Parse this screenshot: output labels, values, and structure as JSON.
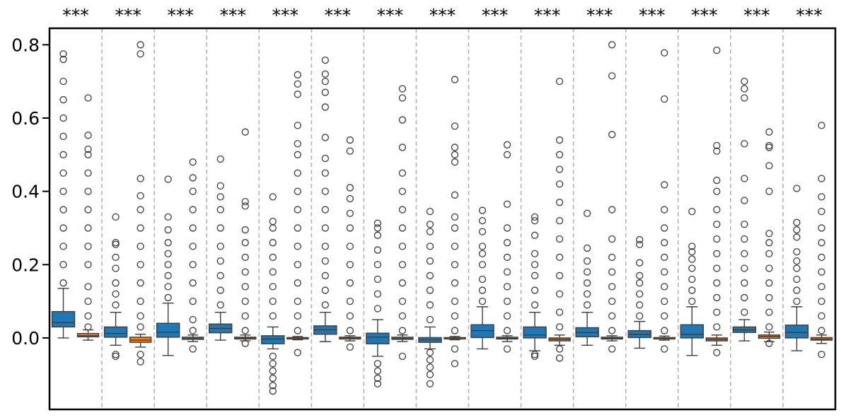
{
  "chart_data": {
    "type": "box",
    "title": "",
    "xlabel": "",
    "ylabel": "",
    "ylim": [
      -0.195,
      0.845
    ],
    "y_ticks": [
      {
        "value": 0.0,
        "label": "0.0"
      },
      {
        "value": 0.2,
        "label": "0.2"
      },
      {
        "value": 0.4,
        "label": "0.4"
      },
      {
        "value": 0.6,
        "label": "0.6"
      },
      {
        "value": 0.8,
        "label": "0.8"
      }
    ],
    "grid": false,
    "legend": "none",
    "group_separators": "dashed",
    "significance_marker": "***",
    "series_colors": [
      "#1f77b4",
      "#ff7f0e"
    ],
    "groups": [
      {
        "significance": "***",
        "boxes": [
          {
            "q1": 0.03,
            "median": 0.042,
            "q3": 0.072,
            "whisker_low": 0.0,
            "whisker_high": 0.135,
            "outliers": [
              0.15,
              0.2,
              0.25,
              0.3,
              0.35,
              0.4,
              0.45,
              0.5,
              0.55,
              0.6,
              0.65,
              0.7,
              0.76,
              0.775
            ]
          },
          {
            "q1": 0.003,
            "median": 0.006,
            "q3": 0.012,
            "whisker_low": -0.006,
            "whisker_high": 0.022,
            "outliers": [
              0.03,
              0.06,
              0.1,
              0.14,
              0.2,
              0.25,
              0.3,
              0.35,
              0.4,
              0.45,
              0.5,
              0.515,
              0.553,
              0.655
            ]
          }
        ]
      },
      {
        "significance": "***",
        "boxes": [
          {
            "q1": 0.002,
            "median": 0.012,
            "q3": 0.03,
            "whisker_low": -0.02,
            "whisker_high": 0.07,
            "outliers": [
              -0.05,
              -0.045,
              0.09,
              0.12,
              0.15,
              0.19,
              0.22,
              0.255,
              0.26,
              0.33
            ]
          },
          {
            "q1": -0.012,
            "median": -0.006,
            "q3": 0.002,
            "whisker_low": -0.025,
            "whisker_high": 0.01,
            "outliers": [
              -0.065,
              -0.045,
              0.03,
              0.06,
              0.1,
              0.15,
              0.2,
              0.25,
              0.3,
              0.35,
              0.388,
              0.435,
              0.775,
              0.8
            ]
          }
        ]
      },
      {
        "significance": "***",
        "boxes": [
          {
            "q1": 0.002,
            "median": 0.016,
            "q3": 0.04,
            "whisker_low": -0.048,
            "whisker_high": 0.095,
            "outliers": [
              0.11,
              0.14,
              0.17,
              0.2,
              0.23,
              0.26,
              0.295,
              0.33,
              0.433
            ]
          },
          {
            "q1": -0.004,
            "median": -0.001,
            "q3": 0.002,
            "whisker_low": -0.01,
            "whisker_high": 0.008,
            "outliers": [
              -0.03,
              0.02,
              0.05,
              0.1,
              0.15,
              0.2,
              0.25,
              0.3,
              0.35,
              0.4,
              0.437,
              0.48
            ]
          }
        ]
      },
      {
        "significance": "***",
        "boxes": [
          {
            "q1": 0.014,
            "median": 0.026,
            "q3": 0.038,
            "whisker_low": -0.006,
            "whisker_high": 0.07,
            "outliers": [
              0.09,
              0.13,
              0.17,
              0.21,
              0.25,
              0.3,
              0.35,
              0.385,
              0.415,
              0.488
            ]
          },
          {
            "q1": -0.003,
            "median": 0.0,
            "q3": 0.002,
            "whisker_low": -0.008,
            "whisker_high": 0.008,
            "outliers": [
              -0.015,
              0.02,
              0.06,
              0.1,
              0.14,
              0.18,
              0.22,
              0.26,
              0.295,
              0.36,
              0.372,
              0.562
            ]
          }
        ]
      },
      {
        "significance": "***",
        "boxes": [
          {
            "q1": -0.016,
            "median": -0.003,
            "q3": 0.006,
            "whisker_low": -0.03,
            "whisker_high": 0.03,
            "outliers": [
              -0.145,
              -0.13,
              -0.11,
              -0.09,
              -0.07,
              -0.05,
              0.06,
              0.1,
              0.14,
              0.18,
              0.22,
              0.26,
              0.3,
              0.318,
              0.385
            ]
          },
          {
            "q1": -0.002,
            "median": 0.0,
            "q3": 0.001,
            "whisker_low": -0.005,
            "whisker_high": 0.004,
            "outliers": [
              -0.04,
              0.02,
              0.06,
              0.1,
              0.15,
              0.2,
              0.25,
              0.3,
              0.35,
              0.4,
              0.45,
              0.5,
              0.53,
              0.58,
              0.665,
              0.693,
              0.718
            ]
          }
        ]
      },
      {
        "significance": "***",
        "boxes": [
          {
            "q1": 0.01,
            "median": 0.022,
            "q3": 0.033,
            "whisker_low": -0.01,
            "whisker_high": 0.07,
            "outliers": [
              0.09,
              0.13,
              0.17,
              0.21,
              0.25,
              0.3,
              0.35,
              0.4,
              0.45,
              0.49,
              0.547,
              0.63,
              0.67,
              0.7,
              0.72,
              0.758
            ]
          },
          {
            "q1": -0.003,
            "median": 0.0,
            "q3": 0.002,
            "whisker_low": -0.008,
            "whisker_high": 0.006,
            "outliers": [
              -0.025,
              0.02,
              0.06,
              0.1,
              0.15,
              0.2,
              0.25,
              0.3,
              0.34,
              0.38,
              0.41,
              0.51,
              0.54
            ]
          }
        ]
      },
      {
        "significance": "***",
        "boxes": [
          {
            "q1": -0.016,
            "median": 0.002,
            "q3": 0.013,
            "whisker_low": -0.05,
            "whisker_high": 0.05,
            "outliers": [
              -0.125,
              -0.11,
              -0.09,
              -0.07,
              0.08,
              0.12,
              0.16,
              0.2,
              0.24,
              0.28,
              0.3,
              0.313
            ]
          },
          {
            "q1": -0.004,
            "median": -0.001,
            "q3": 0.002,
            "whisker_low": -0.01,
            "whisker_high": 0.008,
            "outliers": [
              -0.05,
              0.02,
              0.06,
              0.1,
              0.15,
              0.2,
              0.25,
              0.3,
              0.35,
              0.4,
              0.45,
              0.52,
              0.595,
              0.655,
              0.68
            ]
          }
        ]
      },
      {
        "significance": "***",
        "boxes": [
          {
            "q1": -0.012,
            "median": -0.005,
            "q3": 0.001,
            "whisker_low": -0.03,
            "whisker_high": 0.03,
            "outliers": [
              -0.125,
              -0.1,
              -0.08,
              -0.06,
              -0.04,
              0.05,
              0.09,
              0.13,
              0.17,
              0.21,
              0.25,
              0.29,
              0.31,
              0.345
            ]
          },
          {
            "q1": -0.002,
            "median": 0.0,
            "q3": 0.001,
            "whisker_low": -0.005,
            "whisker_high": 0.004,
            "outliers": [
              -0.07,
              -0.03,
              0.02,
              0.06,
              0.1,
              0.15,
              0.2,
              0.25,
              0.3,
              0.33,
              0.39,
              0.48,
              0.5,
              0.52,
              0.578,
              0.705
            ]
          }
        ]
      },
      {
        "significance": "***",
        "boxes": [
          {
            "q1": 0.001,
            "median": 0.02,
            "q3": 0.036,
            "whisker_low": -0.03,
            "whisker_high": 0.085,
            "outliers": [
              0.1,
              0.13,
              0.16,
              0.2,
              0.23,
              0.25,
              0.29,
              0.32,
              0.348
            ]
          },
          {
            "q1": -0.003,
            "median": -0.001,
            "q3": 0.002,
            "whisker_low": -0.01,
            "whisker_high": 0.006,
            "outliers": [
              -0.03,
              0.02,
              0.06,
              0.1,
              0.14,
              0.18,
              0.22,
              0.26,
              0.3,
              0.365,
              0.5,
              0.527
            ]
          }
        ]
      },
      {
        "significance": "***",
        "boxes": [
          {
            "q1": 0.0,
            "median": 0.008,
            "q3": 0.03,
            "whisker_low": -0.035,
            "whisker_high": 0.07,
            "outliers": [
              -0.05,
              -0.045,
              0.09,
              0.13,
              0.17,
              0.2,
              0.23,
              0.28,
              0.32,
              0.33
            ]
          },
          {
            "q1": -0.008,
            "median": -0.004,
            "q3": 0.0,
            "whisker_low": -0.02,
            "whisker_high": 0.008,
            "outliers": [
              -0.055,
              -0.03,
              0.03,
              0.07,
              0.12,
              0.17,
              0.22,
              0.27,
              0.32,
              0.37,
              0.42,
              0.46,
              0.5,
              0.54,
              0.7
            ]
          }
        ]
      },
      {
        "significance": "***",
        "boxes": [
          {
            "q1": 0.003,
            "median": 0.015,
            "q3": 0.028,
            "whisker_low": -0.02,
            "whisker_high": 0.07,
            "outliers": [
              0.09,
              0.12,
              0.15,
              0.18,
              0.21,
              0.245,
              0.34
            ]
          },
          {
            "q1": -0.003,
            "median": -0.001,
            "q3": 0.002,
            "whisker_low": -0.008,
            "whisker_high": 0.006,
            "outliers": [
              -0.03,
              0.02,
              0.06,
              0.1,
              0.14,
              0.18,
              0.22,
              0.27,
              0.35,
              0.555,
              0.715,
              0.8
            ]
          }
        ]
      },
      {
        "significance": "***",
        "boxes": [
          {
            "q1": 0.001,
            "median": 0.01,
            "q3": 0.02,
            "whisker_low": -0.028,
            "whisker_high": 0.045,
            "outliers": [
              0.06,
              0.09,
              0.12,
              0.15,
              0.17,
              0.205,
              0.255,
              0.268
            ]
          },
          {
            "q1": -0.002,
            "median": 0.0,
            "q3": 0.001,
            "whisker_low": -0.006,
            "whisker_high": 0.005,
            "outliers": [
              -0.03,
              0.02,
              0.06,
              0.1,
              0.14,
              0.18,
              0.22,
              0.26,
              0.3,
              0.35,
              0.418,
              0.652,
              0.778
            ]
          }
        ]
      },
      {
        "significance": "***",
        "boxes": [
          {
            "q1": 0.0,
            "median": 0.01,
            "q3": 0.036,
            "whisker_low": -0.048,
            "whisker_high": 0.085,
            "outliers": [
              0.1,
              0.13,
              0.16,
              0.19,
              0.215,
              0.235,
              0.25,
              0.345
            ]
          },
          {
            "q1": -0.008,
            "median": -0.004,
            "q3": 0.0,
            "whisker_low": -0.02,
            "whisker_high": 0.008,
            "outliers": [
              -0.04,
              0.03,
              0.07,
              0.11,
              0.15,
              0.19,
              0.23,
              0.27,
              0.31,
              0.35,
              0.4,
              0.43,
              0.51,
              0.525,
              0.785
            ]
          }
        ]
      },
      {
        "significance": "***",
        "boxes": [
          {
            "q1": 0.015,
            "median": 0.022,
            "q3": 0.03,
            "whisker_low": -0.008,
            "whisker_high": 0.05,
            "outliers": [
              0.07,
              0.11,
              0.15,
              0.19,
              0.23,
              0.27,
              0.31,
              0.375,
              0.435,
              0.53,
              0.655,
              0.68,
              0.7
            ]
          },
          {
            "q1": -0.001,
            "median": 0.004,
            "q3": 0.008,
            "whisker_low": -0.01,
            "whisker_high": 0.016,
            "outliers": [
              -0.015,
              0.03,
              0.07,
              0.11,
              0.15,
              0.19,
              0.23,
              0.26,
              0.285,
              0.4,
              0.47,
              0.52,
              0.525,
              0.562
            ]
          }
        ]
      },
      {
        "significance": "***",
        "boxes": [
          {
            "q1": 0.0,
            "median": 0.015,
            "q3": 0.035,
            "whisker_low": -0.035,
            "whisker_high": 0.085,
            "outliers": [
              0.1,
              0.13,
              0.16,
              0.19,
              0.21,
              0.235,
              0.275,
              0.295,
              0.315,
              0.408
            ]
          },
          {
            "q1": -0.006,
            "median": -0.003,
            "q3": 0.001,
            "whisker_low": -0.015,
            "whisker_high": 0.008,
            "outliers": [
              -0.045,
              0.02,
              0.06,
              0.1,
              0.14,
              0.18,
              0.22,
              0.26,
              0.3,
              0.345,
              0.385,
              0.435,
              0.58
            ]
          }
        ]
      }
    ]
  }
}
